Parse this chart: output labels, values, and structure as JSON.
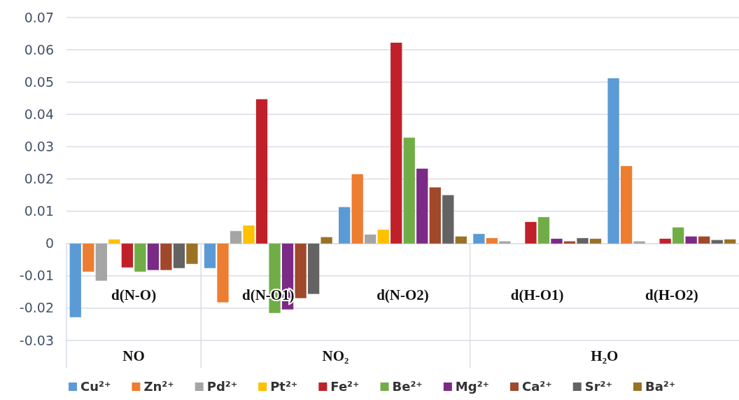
{
  "chart_data": {
    "type": "bar",
    "categories": [
      "d(N-O)",
      "d(N-O1)",
      "d(N-O2)",
      "d(H-O1)",
      "d(H-O2)"
    ],
    "series": [
      {
        "name": "Cu²⁺",
        "color": "#5b9bd5",
        "values": [
          -0.0228,
          -0.0076,
          0.0113,
          0.003,
          0.0512
        ]
      },
      {
        "name": "Zn²⁺",
        "color": "#ed7d31",
        "values": [
          -0.0087,
          -0.0182,
          0.0215,
          0.0017,
          0.024
        ]
      },
      {
        "name": "Pd²⁺",
        "color": "#a5a5a5",
        "values": [
          -0.0115,
          0.0039,
          0.0028,
          0.0007,
          0.0007
        ]
      },
      {
        "name": "Pt²⁺",
        "color": "#ffc000",
        "values": [
          0.0013,
          0.0056,
          0.0043,
          0,
          0
        ]
      },
      {
        "name": "Fe²⁺",
        "color": "#c0202a",
        "values": [
          -0.0074,
          0.0447,
          0.0622,
          0.0067,
          0.0015
        ]
      },
      {
        "name": "Be²⁺",
        "color": "#70ad47",
        "values": [
          -0.0087,
          -0.0215,
          0.0328,
          0.0082,
          0.005
        ]
      },
      {
        "name": "Mg²⁺",
        "color": "#7b2a86",
        "values": [
          -0.0082,
          -0.0204,
          0.0232,
          0.0015,
          0.0022
        ]
      },
      {
        "name": "Ca²⁺",
        "color": "#a0482a",
        "values": [
          -0.0082,
          -0.0169,
          0.0174,
          0.0007,
          0.0022
        ]
      },
      {
        "name": "Sr²⁺",
        "color": "#636363",
        "values": [
          -0.0076,
          -0.0156,
          0.015,
          0.0017,
          0.0011
        ]
      },
      {
        "name": "Ba²⁺",
        "color": "#9a7226",
        "values": [
          -0.0063,
          0.002,
          0.0022,
          0.0015,
          0.0013
        ]
      }
    ],
    "ylim": [
      -0.03,
      0.07
    ],
    "yticks": [
      -0.03,
      -0.02,
      -0.01,
      0,
      0.01,
      0.02,
      0.03,
      0.04,
      0.05,
      0.06,
      0.07
    ],
    "grid": "y",
    "legend": "bottom",
    "annotations": [
      "NO",
      "NO₂",
      "H₂O"
    ]
  }
}
